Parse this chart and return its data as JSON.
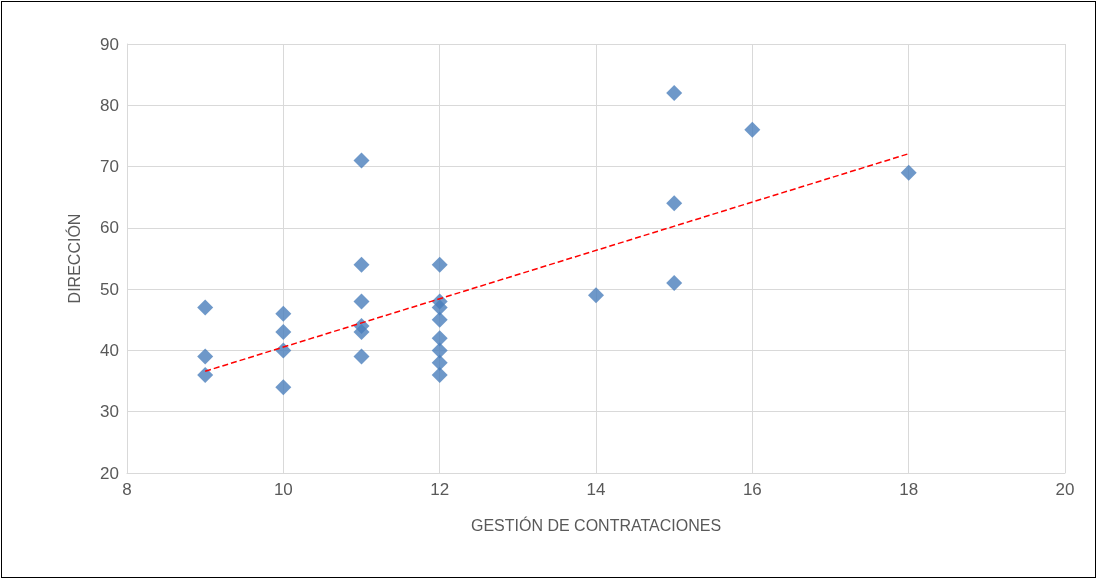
{
  "chart_data": {
    "type": "scatter",
    "xlabel": "GESTIÓN DE CONTRATACIONES",
    "ylabel": "DIRECCIÓN",
    "xlim": [
      8,
      20
    ],
    "xticks": [
      8,
      10,
      12,
      14,
      16,
      18,
      20
    ],
    "ylim": [
      20,
      90
    ],
    "yticks": [
      20,
      30,
      40,
      50,
      60,
      70,
      80,
      90
    ],
    "grid": true,
    "series": [
      {
        "marker": "diamond",
        "color": "#4a7ebb",
        "x": [
          9,
          9,
          9,
          10,
          10,
          10,
          10,
          11,
          11,
          11,
          11,
          11,
          11,
          12,
          12,
          12,
          12,
          12,
          12,
          12,
          12,
          14,
          15,
          15,
          15,
          16,
          18
        ],
        "values": [
          47,
          39,
          36,
          46,
          43,
          40,
          34,
          71,
          54,
          48,
          44,
          43,
          39,
          54,
          48,
          47,
          45,
          42,
          40,
          38,
          36,
          49,
          82,
          64,
          51,
          76,
          69
        ]
      },
      {
        "type": "line",
        "marker": "none",
        "line_style": "dashed",
        "color": "#ff0000",
        "x": [
          9,
          18
        ],
        "values": [
          36.6,
          72.1
        ]
      }
    ]
  }
}
